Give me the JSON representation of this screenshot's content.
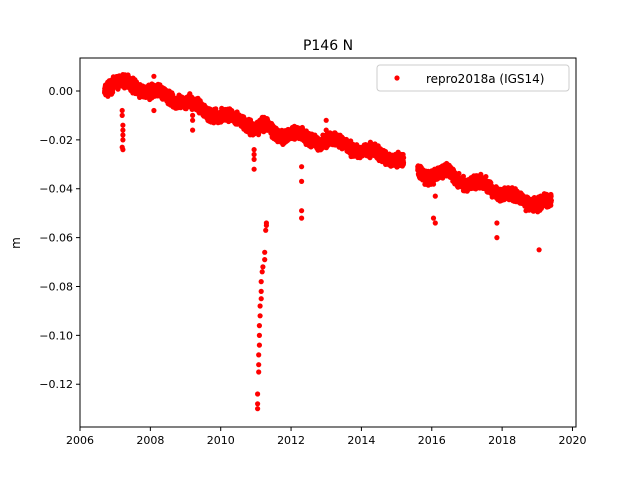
{
  "chart_data": {
    "type": "scatter",
    "title": "P146 N",
    "xlabel": "",
    "ylabel": "m",
    "xlim": [
      2006.0,
      2020.1
    ],
    "ylim": [
      -0.1375,
      0.0135
    ],
    "xticks": [
      2006,
      2008,
      2010,
      2012,
      2014,
      2016,
      2018,
      2020
    ],
    "xtick_labels": [
      "2006",
      "2008",
      "2010",
      "2012",
      "2014",
      "2016",
      "2018",
      "2020"
    ],
    "yticks": [
      0.0,
      -0.02,
      -0.04,
      -0.06,
      -0.08,
      -0.1,
      -0.12
    ],
    "ytick_labels": [
      "0.00",
      "−0.02",
      "−0.04",
      "−0.06",
      "−0.08",
      "−0.10",
      "−0.12"
    ],
    "grid": false,
    "legend": {
      "placement": "top-right",
      "entries": [
        "repro2018a (IGS14)"
      ]
    },
    "series": [
      {
        "name": "repro2018a (IGS14)",
        "color": "#ff0000",
        "marker": "circle",
        "trend_points": [
          [
            2006.7,
            0.001
          ],
          [
            2007.0,
            0.004
          ],
          [
            2007.5,
            0.002
          ],
          [
            2008.0,
            0.0
          ],
          [
            2008.5,
            -0.003
          ],
          [
            2009.0,
            -0.004
          ],
          [
            2009.5,
            -0.008
          ],
          [
            2010.0,
            -0.01
          ],
          [
            2010.5,
            -0.012
          ],
          [
            2011.0,
            -0.015
          ],
          [
            2011.3,
            -0.014
          ],
          [
            2011.5,
            -0.018
          ],
          [
            2012.0,
            -0.017
          ],
          [
            2012.5,
            -0.02
          ],
          [
            2013.0,
            -0.02
          ],
          [
            2013.5,
            -0.022
          ],
          [
            2014.0,
            -0.024
          ],
          [
            2014.5,
            -0.026
          ],
          [
            2015.0,
            -0.028
          ],
          [
            2015.2,
            -0.029
          ],
          [
            2015.6,
            -0.032
          ],
          [
            2016.0,
            -0.035
          ],
          [
            2016.5,
            -0.033
          ],
          [
            2017.0,
            -0.038
          ],
          [
            2017.5,
            -0.038
          ],
          [
            2018.0,
            -0.042
          ],
          [
            2018.5,
            -0.044
          ],
          [
            2019.0,
            -0.046
          ],
          [
            2019.4,
            -0.046
          ]
        ],
        "gaps": [
          [
            2015.2,
            2015.6
          ]
        ],
        "outliers": [
          [
            2007.2,
            -0.008
          ],
          [
            2007.2,
            -0.01
          ],
          [
            2007.22,
            -0.014
          ],
          [
            2007.22,
            -0.016
          ],
          [
            2007.22,
            -0.018
          ],
          [
            2007.22,
            -0.02
          ],
          [
            2007.2,
            -0.023
          ],
          [
            2007.22,
            -0.024
          ],
          [
            2008.1,
            0.006
          ],
          [
            2008.1,
            -0.008
          ],
          [
            2009.2,
            -0.01
          ],
          [
            2009.2,
            -0.012
          ],
          [
            2009.2,
            -0.016
          ],
          [
            2010.95,
            -0.024
          ],
          [
            2010.95,
            -0.026
          ],
          [
            2010.95,
            -0.028
          ],
          [
            2010.95,
            -0.032
          ],
          [
            2011.05,
            -0.13
          ],
          [
            2011.05,
            -0.128
          ],
          [
            2011.05,
            -0.124
          ],
          [
            2011.08,
            -0.115
          ],
          [
            2011.08,
            -0.112
          ],
          [
            2011.08,
            -0.108
          ],
          [
            2011.1,
            -0.104
          ],
          [
            2011.1,
            -0.1
          ],
          [
            2011.1,
            -0.096
          ],
          [
            2011.12,
            -0.092
          ],
          [
            2011.12,
            -0.088
          ],
          [
            2011.15,
            -0.085
          ],
          [
            2011.15,
            -0.082
          ],
          [
            2011.15,
            -0.078
          ],
          [
            2011.18,
            -0.074
          ],
          [
            2011.2,
            -0.072
          ],
          [
            2011.25,
            -0.069
          ],
          [
            2011.25,
            -0.066
          ],
          [
            2011.28,
            -0.057
          ],
          [
            2011.3,
            -0.055
          ],
          [
            2011.3,
            -0.054
          ],
          [
            2012.3,
            -0.031
          ],
          [
            2012.3,
            -0.037
          ],
          [
            2012.3,
            -0.049
          ],
          [
            2012.3,
            -0.052
          ],
          [
            2013.0,
            -0.012
          ],
          [
            2013.0,
            -0.016
          ],
          [
            2016.1,
            -0.043
          ],
          [
            2016.05,
            -0.052
          ],
          [
            2016.1,
            -0.054
          ],
          [
            2017.85,
            -0.054
          ],
          [
            2017.85,
            -0.06
          ],
          [
            2019.05,
            -0.065
          ]
        ]
      }
    ]
  }
}
